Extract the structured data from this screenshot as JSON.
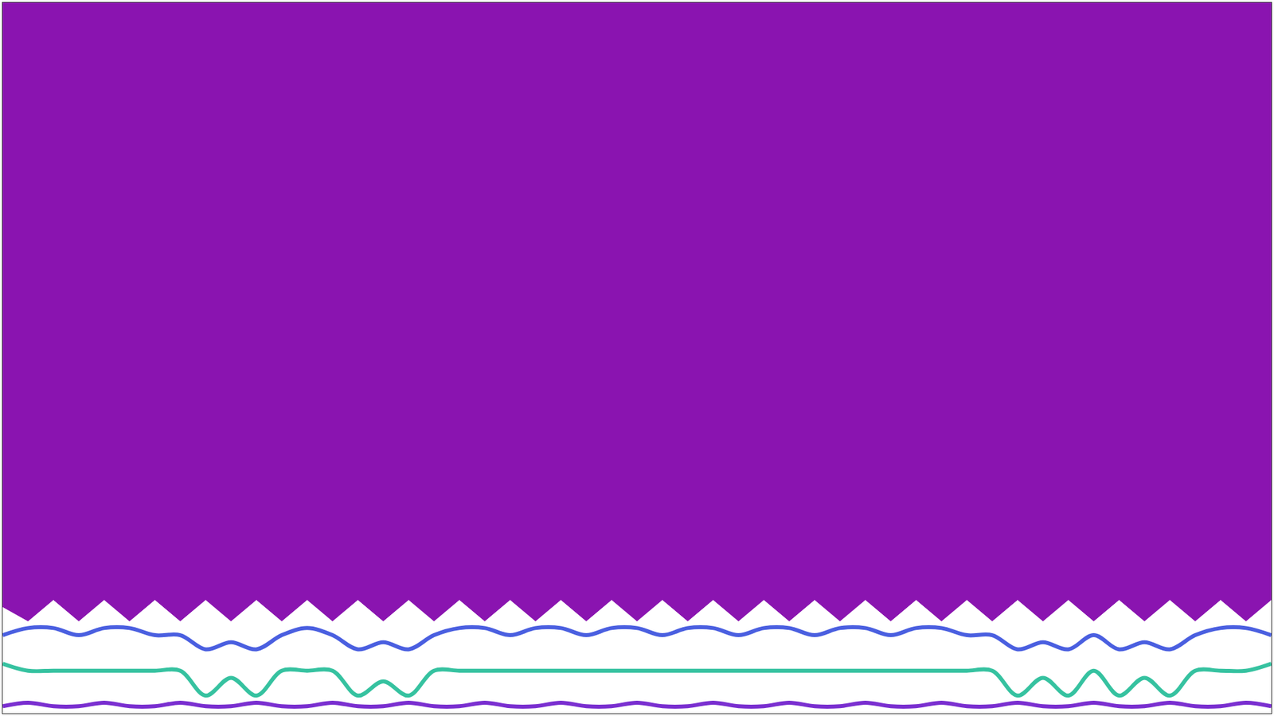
{
  "chart_data": {
    "type": "line",
    "x": [
      0,
      1,
      2,
      3,
      4,
      5,
      6,
      7,
      8,
      9,
      10,
      11,
      12,
      13,
      14,
      15,
      16,
      17,
      18,
      19,
      20,
      21,
      22,
      23,
      24,
      25,
      26,
      27,
      28,
      29,
      30,
      31,
      32,
      33,
      34,
      35,
      36,
      37,
      38,
      39,
      40,
      41,
      42,
      43,
      44,
      45,
      46,
      47,
      48,
      49,
      50
    ],
    "series": [
      {
        "type": "area",
        "color": "#8a14b0",
        "values": [
          0.15,
          0.13,
          0.16,
          0.13,
          0.16,
          0.13,
          0.16,
          0.13,
          0.16,
          0.13,
          0.16,
          0.13,
          0.16,
          0.13,
          0.16,
          0.13,
          0.16,
          0.13,
          0.16,
          0.13,
          0.16,
          0.13,
          0.16,
          0.13,
          0.16,
          0.13,
          0.16,
          0.13,
          0.16,
          0.13,
          0.16,
          0.13,
          0.16,
          0.13,
          0.16,
          0.13,
          0.16,
          0.13,
          0.16,
          0.13,
          0.16,
          0.13,
          0.16,
          0.13,
          0.16,
          0.13,
          0.16,
          0.13,
          0.16,
          0.13,
          0.16
        ]
      },
      {
        "type": "line",
        "color": "#4a5fe0",
        "values": [
          0.11,
          0.12,
          0.12,
          0.11,
          0.12,
          0.12,
          0.11,
          0.11,
          0.09,
          0.1,
          0.09,
          0.11,
          0.12,
          0.11,
          0.09,
          0.1,
          0.09,
          0.11,
          0.12,
          0.12,
          0.11,
          0.12,
          0.12,
          0.11,
          0.12,
          0.12,
          0.11,
          0.12,
          0.12,
          0.11,
          0.12,
          0.12,
          0.11,
          0.12,
          0.12,
          0.11,
          0.12,
          0.12,
          0.11,
          0.11,
          0.09,
          0.1,
          0.09,
          0.11,
          0.09,
          0.1,
          0.09,
          0.11,
          0.12,
          0.12,
          0.11
        ]
      },
      {
        "type": "line",
        "color": "#36c2a0",
        "values": [
          0.07,
          0.06,
          0.06,
          0.06,
          0.06,
          0.06,
          0.06,
          0.06,
          0.025,
          0.05,
          0.025,
          0.06,
          0.06,
          0.06,
          0.025,
          0.045,
          0.025,
          0.06,
          0.06,
          0.06,
          0.06,
          0.06,
          0.06,
          0.06,
          0.06,
          0.06,
          0.06,
          0.06,
          0.06,
          0.06,
          0.06,
          0.06,
          0.06,
          0.06,
          0.06,
          0.06,
          0.06,
          0.06,
          0.06,
          0.06,
          0.025,
          0.05,
          0.025,
          0.06,
          0.025,
          0.05,
          0.025,
          0.06,
          0.06,
          0.06,
          0.07
        ]
      },
      {
        "type": "line",
        "color": "#7a2fd0",
        "values": [
          0.01,
          0.015,
          0.01,
          0.01,
          0.015,
          0.01,
          0.01,
          0.015,
          0.01,
          0.01,
          0.015,
          0.01,
          0.01,
          0.015,
          0.01,
          0.01,
          0.015,
          0.01,
          0.01,
          0.015,
          0.01,
          0.01,
          0.015,
          0.01,
          0.01,
          0.015,
          0.01,
          0.01,
          0.015,
          0.01,
          0.01,
          0.015,
          0.01,
          0.01,
          0.015,
          0.01,
          0.01,
          0.015,
          0.01,
          0.01,
          0.015,
          0.01,
          0.01,
          0.015,
          0.01,
          0.01,
          0.015,
          0.01,
          0.01,
          0.015,
          0.01
        ]
      }
    ],
    "xlim": [
      0,
      50
    ],
    "ylim": [
      0,
      1
    ],
    "xticks": [],
    "yticks": [],
    "grid": false,
    "tick_labels": false
  }
}
